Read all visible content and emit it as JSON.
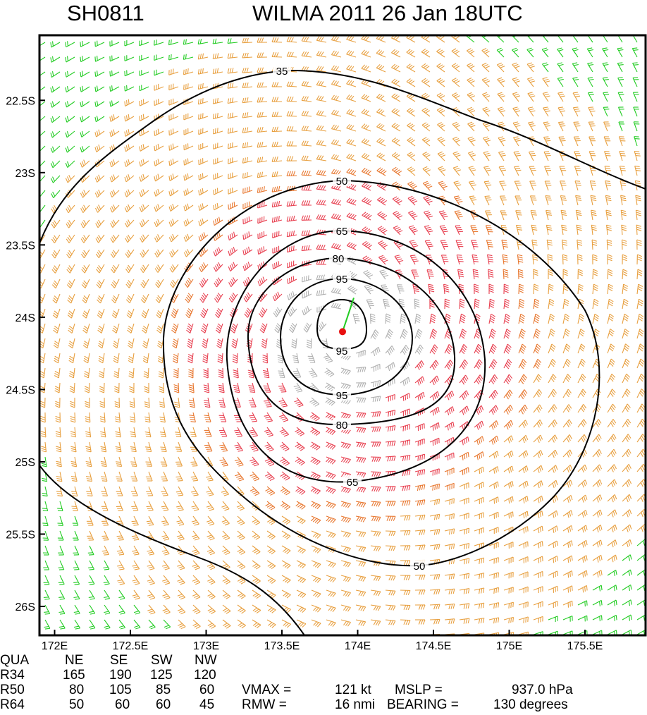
{
  "header": {
    "storm_id": "SH0811",
    "title": "WILMA 2011 26 Jan 18UTC"
  },
  "map": {
    "projection": "lat-lon",
    "lon_range": [
      171.9,
      175.9
    ],
    "lat_range": [
      -26.2,
      -22.05
    ],
    "x_ticks": [
      "172E",
      "172.5E",
      "173E",
      "173.5E",
      "174E",
      "174.5E",
      "175E",
      "175.5E"
    ],
    "y_ticks": [
      "22.5S",
      "23S",
      "23.5S",
      "24S",
      "24.5S",
      "25S",
      "25.5S",
      "26S"
    ],
    "storm_center": {
      "lon": 173.9,
      "lat": -24.1
    },
    "wind_barb_colors": {
      "below_34kt": "#22cc22",
      "34_to_49kt": "#e8a040",
      "50_to_63kt": "#e87830",
      "64_to_95kt": "#e84050",
      "above_95kt": "#b0b0b0"
    },
    "contour_color": "#000000",
    "contour_labels": [
      "35",
      "50",
      "65",
      "80",
      "95",
      "95",
      "95",
      "50",
      "65",
      "80"
    ]
  },
  "wind_radii": {
    "header": [
      "QUA",
      "NE",
      "SE",
      "SW",
      "NW"
    ],
    "rows": [
      [
        "R34",
        "165",
        "190",
        "125",
        "120"
      ],
      [
        "R50",
        "80",
        "105",
        "85",
        "60"
      ],
      [
        "R64",
        "50",
        "60",
        "60",
        "45"
      ]
    ]
  },
  "storm_info": {
    "line1_label": "VMAX =",
    "vmax": "121 kt",
    "mslp_label": "MSLP =",
    "mslp": "937.0 hPa",
    "line2_label": "RMW  =",
    "rmw": "16 nmi",
    "bearing_label": "BEARING =",
    "bearing": "130 degrees"
  }
}
